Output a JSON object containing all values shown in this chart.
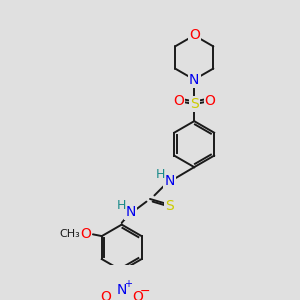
{
  "bg_color": "#e0e0e0",
  "bond_color": "#1a1a1a",
  "colors": {
    "O": "#ff0000",
    "N": "#0000ee",
    "S": "#cccc00",
    "H": "#1a8a8a",
    "C": "#1a1a1a"
  },
  "figsize": [
    3.0,
    3.0
  ],
  "dpi": 100
}
